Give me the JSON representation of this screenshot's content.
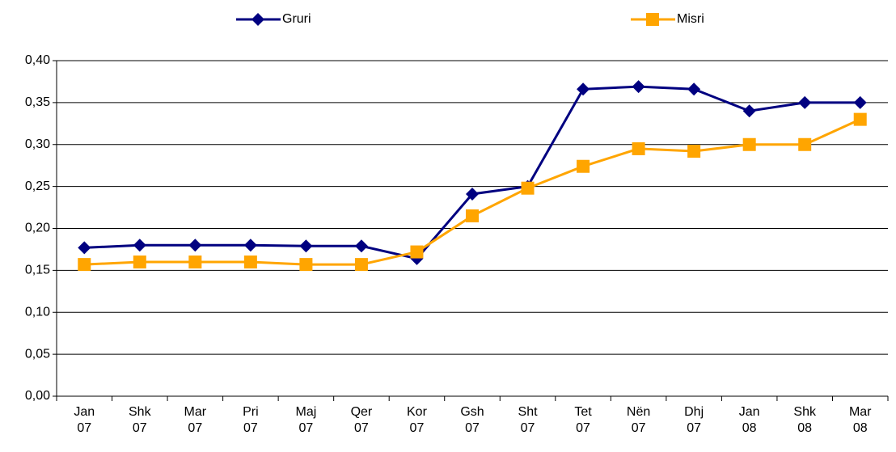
{
  "chart_data": {
    "type": "line",
    "categories": [
      "Jan 07",
      "Shk 07",
      "Mar 07",
      "Pri 07",
      "Maj 07",
      "Qer 07",
      "Kor 07",
      "Gsh 07",
      "Sht 07",
      "Tet 07",
      "Nën 07",
      "Dhj 07",
      "Jan 08",
      "Shk 08",
      "Mar 08"
    ],
    "series": [
      {
        "name": "Gruri",
        "color": "#000080",
        "marker": "diamond",
        "values": [
          0.177,
          0.18,
          0.18,
          0.18,
          0.179,
          0.179,
          0.164,
          0.241,
          0.25,
          0.366,
          0.369,
          0.366,
          0.34,
          0.35,
          0.35
        ]
      },
      {
        "name": "Misri",
        "color": "#FFA500",
        "marker": "square",
        "values": [
          0.157,
          0.16,
          0.16,
          0.16,
          0.157,
          0.157,
          0.172,
          0.215,
          0.248,
          0.274,
          0.295,
          0.292,
          0.3,
          0.3,
          0.33
        ]
      }
    ],
    "ylim": [
      0,
      0.4
    ],
    "yticks": [
      {
        "value": 0,
        "label": "0,00"
      },
      {
        "value": 0.05,
        "label": "0,05"
      },
      {
        "value": 0.1,
        "label": "0,10"
      },
      {
        "value": 0.15,
        "label": "0,15"
      },
      {
        "value": 0.2,
        "label": "0,20"
      },
      {
        "value": 0.25,
        "label": "0,25"
      },
      {
        "value": 0.3,
        "label": "0,30"
      },
      {
        "value": 0.35,
        "label": "0,35"
      },
      {
        "value": 0.4,
        "label": "0,40"
      }
    ],
    "grid": true,
    "legend": "top"
  }
}
